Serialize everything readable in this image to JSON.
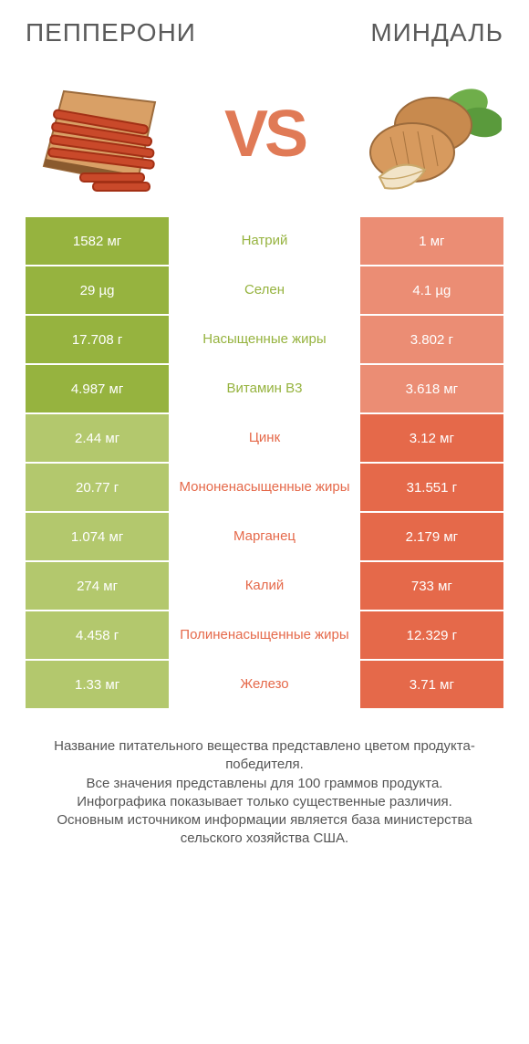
{
  "colors": {
    "green": "#96b33f",
    "green_light": "#b3c86d",
    "orange": "#e5694a",
    "orange_light": "#eb8d74",
    "vs": "#e07a56",
    "title": "#5a5a5a",
    "footnote": "#555555",
    "white": "#ffffff"
  },
  "header": {
    "left": "ПЕППЕРОНИ",
    "right": "МИНДАЛЬ",
    "vs": "VS"
  },
  "rows": [
    {
      "left": "1582 мг",
      "mid": "Натрий",
      "right": "1 мг",
      "winner": "left"
    },
    {
      "left": "29 µg",
      "mid": "Селен",
      "right": "4.1 µg",
      "winner": "left"
    },
    {
      "left": "17.708 г",
      "mid": "Насыщенные жиры",
      "right": "3.802 г",
      "winner": "left"
    },
    {
      "left": "4.987 мг",
      "mid": "Витамин B3",
      "right": "3.618 мг",
      "winner": "left"
    },
    {
      "left": "2.44 мг",
      "mid": "Цинк",
      "right": "3.12 мг",
      "winner": "right"
    },
    {
      "left": "20.77 г",
      "mid": "Мононенасыщенные жиры",
      "right": "31.551 г",
      "winner": "right"
    },
    {
      "left": "1.074 мг",
      "mid": "Марганец",
      "right": "2.179 мг",
      "winner": "right"
    },
    {
      "left": "274 мг",
      "mid": "Калий",
      "right": "733 мг",
      "winner": "right"
    },
    {
      "left": "4.458 г",
      "mid": "Полиненасыщенные жиры",
      "right": "12.329 г",
      "winner": "right"
    },
    {
      "left": "1.33 мг",
      "mid": "Железо",
      "right": "3.71 мг",
      "winner": "right"
    }
  ],
  "footnote": "Название питательного вещества представлено цветом продукта-победителя.\nВсе значения представлены для 100 граммов продукта.\nИнфографика показывает только существенные различия.\nОсновным источником информации является база министерства сельского хозяйства США."
}
